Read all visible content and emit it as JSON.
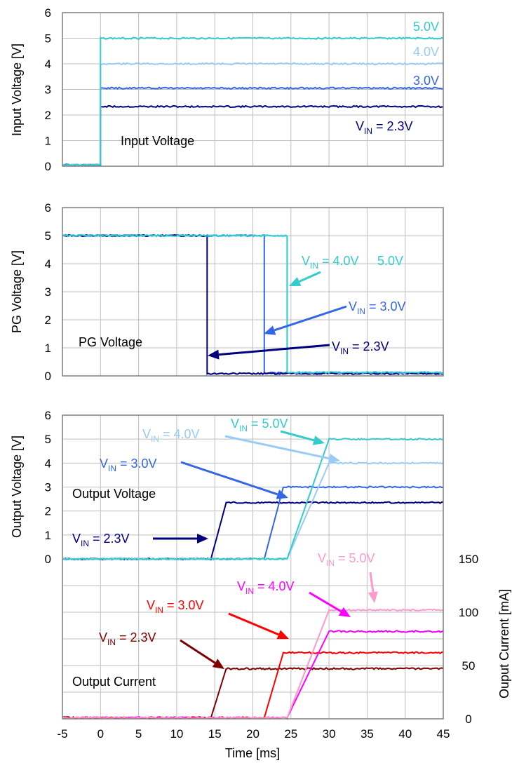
{
  "colors": {
    "v23": "#00007F",
    "v30": "#3366E6",
    "v40": "#99CCF5",
    "v50": "#33CCCC",
    "i23": "#7F0000",
    "i30": "#FF0000",
    "i40": "#FF00FF",
    "i50": "#FF99CC",
    "grid": "#BFBFBF",
    "frame": "#7F7F7F"
  },
  "chart_data": [
    {
      "type": "line",
      "id": "input",
      "title": "Input Voltage",
      "xlabel": "",
      "ylabel": "Input Voltage  [V]",
      "xlim": [
        -5,
        45
      ],
      "ylim": [
        0,
        6
      ],
      "yticks": [
        "0",
        "1",
        "2",
        "3",
        "4",
        "5",
        "6"
      ],
      "series": [
        {
          "name": "5.0V",
          "x": [
            -5,
            0,
            0,
            45
          ],
          "y": [
            0.05,
            0.05,
            5.0,
            5.0
          ]
        },
        {
          "name": "4.0V",
          "x": [
            -5,
            0,
            0,
            45
          ],
          "y": [
            0.05,
            0.05,
            4.0,
            4.0
          ]
        },
        {
          "name": "3.0V",
          "x": [
            -5,
            0,
            0,
            45
          ],
          "y": [
            0.05,
            0.05,
            3.05,
            3.05
          ]
        },
        {
          "name": "V_IN = 2.3V",
          "x": [
            -5,
            0,
            0,
            45
          ],
          "y": [
            0.05,
            0.05,
            2.33,
            2.33
          ]
        }
      ],
      "labels": {
        "inner": "Input Voltage",
        "v50": "5.0V",
        "v40": "4.0V",
        "v30": "3.0V",
        "vin": "V",
        "vin_sub": "IN",
        "v23": " = 2.3V"
      }
    },
    {
      "type": "line",
      "id": "pg",
      "title": "PG Voltage",
      "xlabel": "",
      "ylabel": "PG Voltage  [V]",
      "xlim": [
        -5,
        45
      ],
      "ylim": [
        0,
        6
      ],
      "yticks": [
        "0",
        "1",
        "2",
        "3",
        "4",
        "5",
        "6"
      ],
      "series": [
        {
          "name": "5.0V",
          "x": [
            -5,
            24.5,
            24.5,
            45
          ],
          "y": [
            5.0,
            5.0,
            0.12,
            0.12
          ]
        },
        {
          "name": "4.0V",
          "x": [
            -5,
            24.5,
            24.5,
            45
          ],
          "y": [
            5.0,
            5.0,
            0.12,
            0.12
          ]
        },
        {
          "name": "3.0V",
          "x": [
            -5,
            21.5,
            21.5,
            45
          ],
          "y": [
            5.0,
            5.0,
            0.1,
            0.1
          ]
        },
        {
          "name": "2.3V",
          "x": [
            -5,
            14,
            14,
            45
          ],
          "y": [
            5.0,
            5.0,
            0.08,
            0.08
          ]
        }
      ],
      "labels": {
        "inner": "PG Voltage",
        "vin": "V",
        "vin_sub": "IN",
        "v4050": " = 4.0V",
        "v50": "5.0V",
        "v30": " = 3.0V",
        "v23": " = 2.3V"
      }
    },
    {
      "type": "line",
      "id": "output",
      "title": "Output Voltage / Output Current",
      "xlabel": "Time  [ms]",
      "ylabel": "Output Voltage  [V]",
      "y2label": "Ouput Current  [mA]",
      "xlim": [
        -5,
        45
      ],
      "ylim": [
        0,
        6
      ],
      "y2lim": [
        0,
        150
      ],
      "xticks": [
        "-5",
        "0",
        "5",
        "10",
        "15",
        "20",
        "25",
        "30",
        "35",
        "40",
        "45"
      ],
      "yticks": [
        "0",
        "1",
        "2",
        "3",
        "4",
        "5",
        "6"
      ],
      "y2ticks": [
        "0",
        "50",
        "100",
        "150"
      ],
      "voltage_series": [
        {
          "name": "2.3V",
          "x": [
            -5,
            14.5,
            16.5,
            45
          ],
          "y": [
            0,
            0,
            2.35,
            2.35
          ]
        },
        {
          "name": "3.0V",
          "x": [
            -5,
            21.5,
            24,
            45
          ],
          "y": [
            0,
            0,
            3.0,
            3.0
          ]
        },
        {
          "name": "4.0V",
          "x": [
            -5,
            24.5,
            30,
            45
          ],
          "y": [
            0,
            0,
            4.0,
            4.0
          ]
        },
        {
          "name": "5.0V",
          "x": [
            -5,
            24.5,
            30,
            45
          ],
          "y": [
            0,
            0,
            5.0,
            5.0
          ]
        }
      ],
      "current_series": [
        {
          "name": "2.3V",
          "x": [
            -5,
            14.5,
            16.5,
            45
          ],
          "y": [
            1,
            1,
            47,
            47
          ]
        },
        {
          "name": "3.0V",
          "x": [
            -5,
            21.5,
            24,
            45
          ],
          "y": [
            1,
            1,
            62,
            62
          ]
        },
        {
          "name": "4.0V",
          "x": [
            -5,
            24.5,
            30,
            45
          ],
          "y": [
            1,
            1,
            82,
            82
          ]
        },
        {
          "name": "5.0V",
          "x": [
            -5,
            24.5,
            30,
            45
          ],
          "y": [
            1,
            1,
            102,
            102
          ]
        }
      ],
      "labels": {
        "inner_voltage": "Output Voltage",
        "inner_current": "Output Current",
        "vin": "V",
        "vin_sub": "IN",
        "v50": " = 5.0V",
        "v40": " = 4.0V",
        "v30": " = 3.0V",
        "v23": " = 2.3V"
      }
    }
  ]
}
